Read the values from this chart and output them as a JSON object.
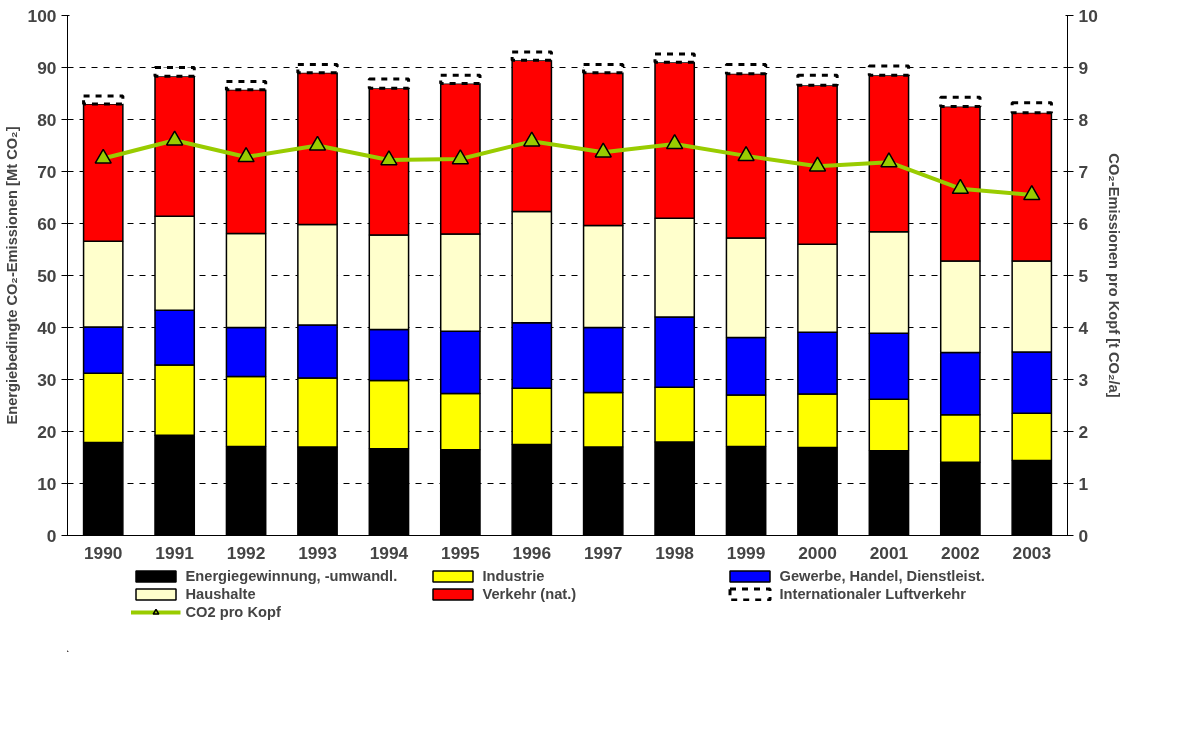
{
  "chart_data": {
    "type": "bar",
    "stacked": true,
    "ylabel": "Energiebedingte CO₂-Emissionen [Mt CO₂]",
    "y2label": "CO₂-Emissionen pro Kopf [t CO₂/a]",
    "categories": [
      "1990",
      "1991",
      "1992",
      "1993",
      "1994",
      "1995",
      "1996",
      "1997",
      "1998",
      "1999",
      "2000",
      "2001",
      "2002",
      "2003"
    ],
    "ylim": [
      0,
      100
    ],
    "yticks": [
      0,
      10,
      20,
      30,
      40,
      50,
      60,
      70,
      80,
      90,
      100
    ],
    "y2lim": [
      0,
      10
    ],
    "y2ticks": [
      0,
      1,
      2,
      3,
      4,
      5,
      6,
      7,
      8,
      9,
      10
    ],
    "grid": "y",
    "legend": "bottom",
    "series": [
      {
        "name": "Energiegewinnung, -umwandl.",
        "color": "#000000",
        "values": [
          17.9,
          19.3,
          17.1,
          17.0,
          16.7,
          16.5,
          17.5,
          17.0,
          18.0,
          17.1,
          16.9,
          16.3,
          14.1,
          14.4
        ]
      },
      {
        "name": "Industrie",
        "color": "#ffff00",
        "values": [
          13.3,
          13.5,
          13.5,
          13.3,
          13.1,
          10.8,
          10.8,
          10.5,
          10.5,
          9.9,
          10.3,
          9.9,
          9.1,
          9.1
        ]
      },
      {
        "name": "Gewerbe, Handel, Dienstleist.",
        "color": "#0000ff",
        "values": [
          8.9,
          10.5,
          9.4,
          10.2,
          9.8,
          12.0,
          12.6,
          12.5,
          13.5,
          11.1,
          11.9,
          12.7,
          12.0,
          11.8
        ]
      },
      {
        "name": "Haushalte",
        "color": "#ffffcc",
        "values": [
          16.5,
          18.1,
          18.1,
          19.3,
          18.2,
          18.7,
          21.4,
          19.6,
          19.0,
          19.1,
          16.9,
          19.5,
          17.6,
          17.5
        ]
      },
      {
        "name": "Verkehr (nat.)",
        "color": "#ff0000",
        "values": [
          26.4,
          26.9,
          27.6,
          29.2,
          28.2,
          28.9,
          29.1,
          29.4,
          30.0,
          31.6,
          30.6,
          30.1,
          29.7,
          28.5
        ]
      },
      {
        "name": "Internationaler Luftverkehr",
        "color": "#ffffff",
        "line_style": "dashed",
        "values": [
          1.5,
          1.7,
          1.6,
          1.6,
          1.8,
          1.6,
          1.6,
          1.6,
          1.6,
          1.8,
          1.9,
          1.8,
          1.8,
          1.9
        ]
      },
      {
        "name": "CO2 pro Kopf",
        "type": "line",
        "axis": "y2",
        "color": "#99cc00",
        "marker": "triangle",
        "values": [
          7.25,
          7.6,
          7.28,
          7.5,
          7.22,
          7.24,
          7.58,
          7.37,
          7.53,
          7.3,
          7.1,
          7.18,
          6.67,
          6.55
        ]
      }
    ]
  }
}
